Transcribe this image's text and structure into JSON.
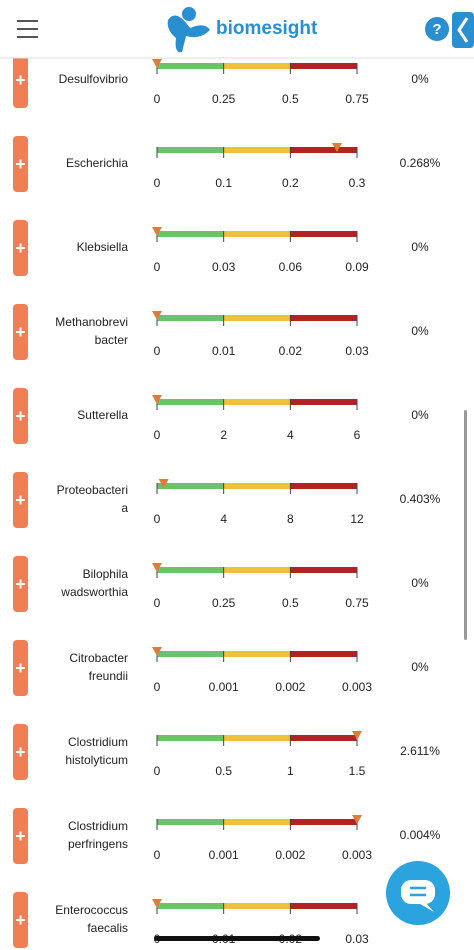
{
  "header": {
    "brand": "biomesight",
    "help": "?"
  },
  "rows": [
    {
      "name": [
        "Desulfovibrio"
      ],
      "ticks": [
        0,
        0.25,
        0.5,
        0.75
      ],
      "marker": 0,
      "value": "0%"
    },
    {
      "name": [
        "Escherichia"
      ],
      "ticks": [
        0,
        0.1,
        0.2,
        0.3
      ],
      "marker": 0.27,
      "value": "0.268%"
    },
    {
      "name": [
        "Klebsiella"
      ],
      "ticks": [
        0,
        0.03,
        0.06,
        0.09
      ],
      "marker": 0,
      "value": "0%"
    },
    {
      "name": [
        "Methanobrevi",
        "bacter"
      ],
      "ticks": [
        0,
        0.01,
        0.02,
        0.03
      ],
      "marker": 0,
      "value": "0%"
    },
    {
      "name": [
        "Sutterella"
      ],
      "ticks": [
        0,
        2,
        4,
        6
      ],
      "marker": 0,
      "value": "0%"
    },
    {
      "name": [
        "Proteobacteri",
        "a"
      ],
      "ticks": [
        0,
        4,
        8,
        12
      ],
      "marker": 0.4,
      "value": "0.403%"
    },
    {
      "name": [
        "Bilophila",
        "wadsworthia"
      ],
      "ticks": [
        0,
        0.25,
        0.5,
        0.75
      ],
      "marker": 0,
      "value": "0%"
    },
    {
      "name": [
        "Citrobacter",
        "freundii"
      ],
      "ticks": [
        0,
        0.001,
        0.002,
        0.003
      ],
      "marker": 0,
      "value": "0%"
    },
    {
      "name": [
        "Clostridium",
        "histolyticum"
      ],
      "ticks": [
        0,
        0.5,
        1,
        1.5
      ],
      "marker": 1.5,
      "value": "2.611%"
    },
    {
      "name": [
        "Clostridium",
        "perfringens"
      ],
      "ticks": [
        0,
        0.001,
        0.002,
        0.003
      ],
      "marker": 0.003,
      "value": "0.004%"
    },
    {
      "name": [
        "Enterococcus",
        "faecalis"
      ],
      "ticks": [
        0,
        0.01,
        0.02,
        0.03
      ],
      "marker": 0,
      "value": "0%"
    }
  ]
}
